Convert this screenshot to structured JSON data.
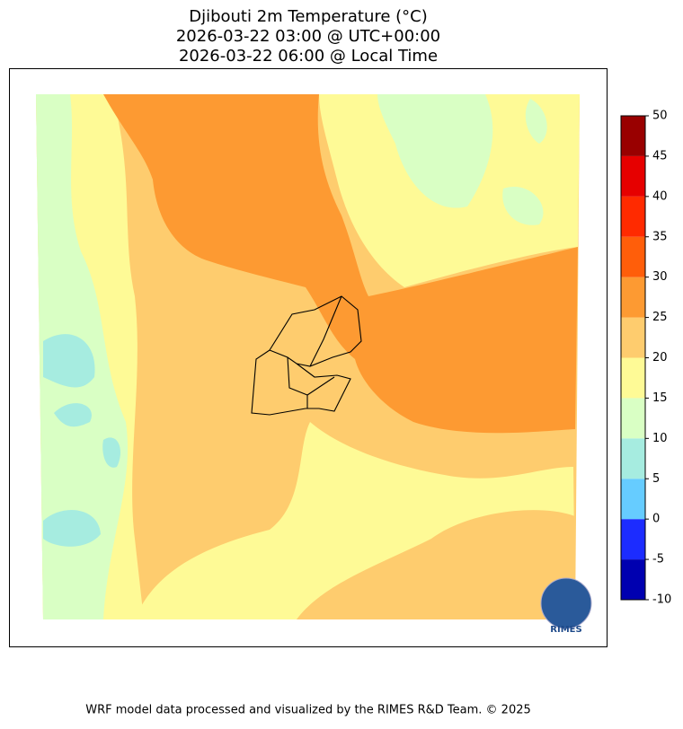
{
  "title": [
    "Djibouti 2m Temperature (°C)",
    "2026-03-22 03:00 @ UTC+00:00",
    "2026-03-22 06:00 @ Local Time"
  ],
  "colorbar": {
    "lim": [
      -10,
      50
    ],
    "ticks": [
      -10,
      -5,
      0,
      5,
      10,
      15,
      20,
      25,
      30,
      35,
      40,
      45,
      50
    ],
    "colors": [
      "#0000b0",
      "#1c2cff",
      "#66ccff",
      "#a6ece0",
      "#d9ffc4",
      "#fefa96",
      "#fecc6e",
      "#fd9a32",
      "#ff5e0a",
      "#ff2a00",
      "#e60000",
      "#990000"
    ]
  },
  "logo": "RIMES",
  "footer": "WRF model data processed and visualized by the RIMES R&D Team. © 2025"
}
